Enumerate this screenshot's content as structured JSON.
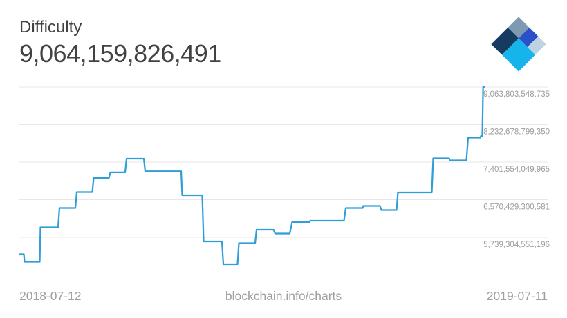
{
  "header": {
    "title": "Difficulty",
    "value": "9,064,159,826,491"
  },
  "logo": {
    "name": "blockchain-logo",
    "colors": {
      "slate": "#7e9ab0",
      "royal_blue": "#2c50c8",
      "light_blue": "#bdd3e2",
      "navy": "#173a60",
      "cyan": "#15b4ea"
    }
  },
  "footer": {
    "start_date": "2018-07-12",
    "source": "blockchain.info/charts",
    "end_date": "2019-07-11"
  },
  "chart_data": {
    "type": "line",
    "title": "Difficulty",
    "current_value": 9064159826491,
    "x_range": [
      "2018-07-12",
      "2019-07-11"
    ],
    "ylim": [
      4908179801811,
      9063803548735
    ],
    "grid": true,
    "legend": "none",
    "line_color": "#2f9ed8",
    "gridline_color": "#e7e7e7",
    "label_color": "#9e9e9e",
    "gridline_values": [
      9063803548735,
      8232678799350,
      7401554049965,
      6570429300581,
      5739304551196,
      4908179801811
    ],
    "y_axis_labels": [
      "9,063,803,548,735",
      "8,232,678,799,350",
      "7,401,554,049,965",
      "6,570,429,300,581",
      "5,739,304,551,196"
    ],
    "step_segments": [
      {
        "t0": 0.0,
        "t1": 0.0097,
        "v": 5365000000000
      },
      {
        "t0": 0.0112,
        "t1": 0.0439,
        "v": 5198000000000
      },
      {
        "t0": 0.0454,
        "t1": 0.0833,
        "v": 5960000000000
      },
      {
        "t0": 0.0863,
        "t1": 0.1205,
        "v": 6387000000000
      },
      {
        "t0": 0.1235,
        "t1": 0.157,
        "v": 6738000000000
      },
      {
        "t0": 0.16,
        "t1": 0.1927,
        "v": 7051000000000
      },
      {
        "t0": 0.1957,
        "t1": 0.2277,
        "v": 7175000000000
      },
      {
        "t0": 0.2307,
        "t1": 0.2679,
        "v": 7478000000000
      },
      {
        "t0": 0.2708,
        "t1": 0.3482,
        "v": 7198000000000
      },
      {
        "t0": 0.3504,
        "t1": 0.3936,
        "v": 6669000000000
      },
      {
        "t0": 0.3966,
        "t1": 0.436,
        "v": 5648000000000
      },
      {
        "t0": 0.439,
        "t1": 0.4695,
        "v": 5144000000000
      },
      {
        "t0": 0.4725,
        "t1": 0.5074,
        "v": 5610000000000
      },
      {
        "t0": 0.5104,
        "t1": 0.547,
        "v": 5907000000000
      },
      {
        "t0": 0.5506,
        "t1": 0.5818,
        "v": 5823000000000
      },
      {
        "t0": 0.5871,
        "t1": 0.6242,
        "v": 6075000000000
      },
      {
        "t0": 0.6257,
        "t1": 0.6987,
        "v": 6105000000000
      },
      {
        "t0": 0.7024,
        "t1": 0.7388,
        "v": 6387000000000
      },
      {
        "t0": 0.7403,
        "t1": 0.776,
        "v": 6433000000000
      },
      {
        "t0": 0.779,
        "t1": 0.8117,
        "v": 6342000000000
      },
      {
        "t0": 0.8147,
        "t1": 0.8876,
        "v": 6730000000000
      },
      {
        "t0": 0.8906,
        "t1": 0.9248,
        "v": 7485000000000
      },
      {
        "t0": 0.9263,
        "t1": 0.962,
        "v": 7440000000000
      },
      {
        "t0": 0.9658,
        "t1": 0.9918,
        "v": 7943000000000
      },
      {
        "t0": 0.9933,
        "t1": 0.9963,
        "v": 7980000000000
      },
      {
        "t0": 0.998,
        "t1": 1.0,
        "v": 9064159826491
      }
    ]
  }
}
